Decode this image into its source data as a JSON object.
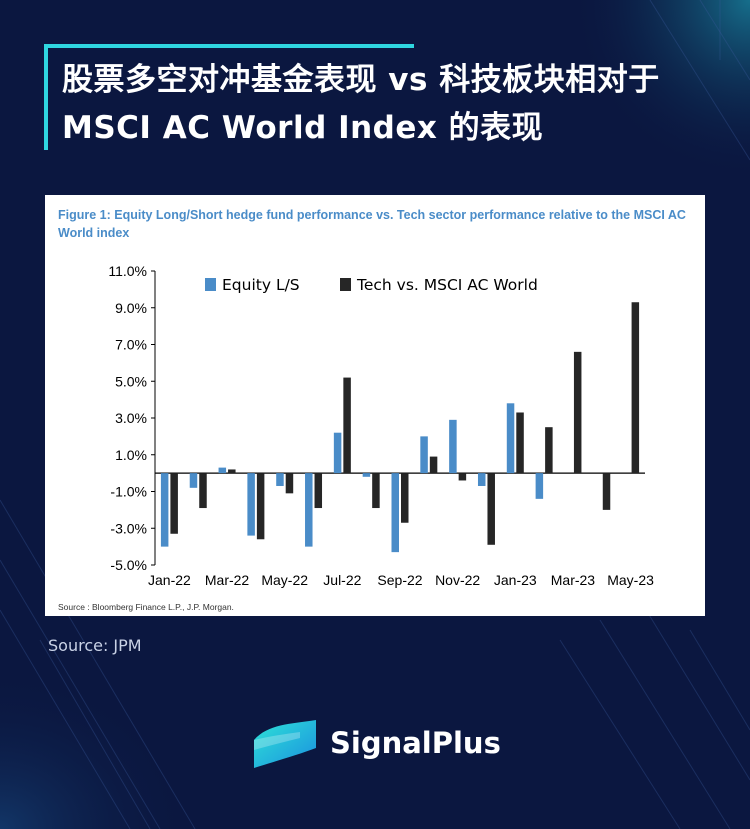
{
  "header": {
    "title": "股票多空对冲基金表现 vs 科技板块相对于 MSCI AC World Index 的表现"
  },
  "figure": {
    "caption": "Figure 1: Equity Long/Short hedge fund performance vs. Tech sector performance relative to the MSCI AC World index",
    "source": "Source : Bloomberg Finance L.P., J.P. Morgan."
  },
  "footer": {
    "source": "Source: JPM",
    "brand": "SignalPlus"
  },
  "colors": {
    "background": "#0b1740",
    "accent": "#2fd6e0",
    "series_equity": "#4a8cc8",
    "series_tech": "#262626"
  },
  "chart_data": {
    "type": "bar",
    "title": "Figure 1: Equity Long/Short hedge fund performance vs. Tech sector performance relative to the MSCI AC World index",
    "xlabel": "",
    "ylabel": "",
    "ylim": [
      -5.0,
      11.0
    ],
    "yticks": [
      "11.0%",
      "9.0%",
      "7.0%",
      "5.0%",
      "3.0%",
      "1.0%",
      "-1.0%",
      "-3.0%",
      "-5.0%"
    ],
    "ytick_values": [
      11,
      9,
      7,
      5,
      3,
      1,
      -1,
      -3,
      -5
    ],
    "categories": [
      "Jan-22",
      "Feb-22",
      "Mar-22",
      "Apr-22",
      "May-22",
      "Jun-22",
      "Jul-22",
      "Aug-22",
      "Sep-22",
      "Oct-22",
      "Nov-22",
      "Dec-22",
      "Jan-23",
      "Feb-23",
      "Mar-23",
      "Apr-23",
      "May-23"
    ],
    "xtick_labels": [
      "Jan-22",
      "",
      "Mar-22",
      "",
      "May-22",
      "",
      "Jul-22",
      "",
      "Sep-22",
      "",
      "Nov-22",
      "",
      "Jan-23",
      "",
      "Mar-23",
      "",
      "May-23"
    ],
    "legend_position": "top",
    "series": [
      {
        "name": "Equity L/S",
        "values": [
          -4.0,
          -0.8,
          0.3,
          -3.4,
          -0.7,
          -4.0,
          2.2,
          -0.2,
          -4.3,
          2.0,
          2.9,
          -0.7,
          3.8,
          -1.4,
          null,
          null,
          null
        ]
      },
      {
        "name": "Tech vs. MSCI AC World",
        "values": [
          -3.3,
          -1.9,
          0.2,
          -3.6,
          -1.1,
          -1.9,
          5.2,
          -1.9,
          -2.7,
          0.9,
          -0.4,
          -3.9,
          3.3,
          2.5,
          6.6,
          -2.0,
          9.3
        ]
      }
    ]
  }
}
